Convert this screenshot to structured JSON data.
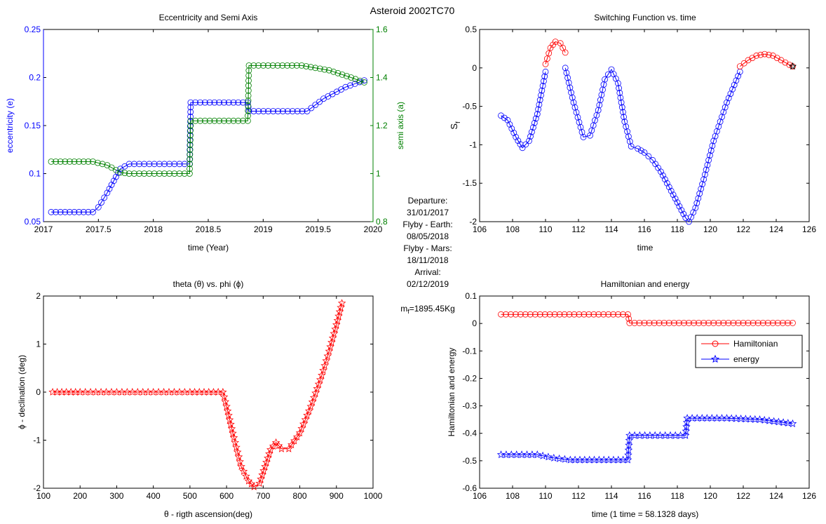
{
  "figure_title": "Asteroid 2002TC70",
  "info": {
    "lines": [
      "Departure:",
      "31/01/2017",
      "Flyby - Earth:",
      "08/05/2018",
      "Flyby - Mars:",
      "18/11/2018",
      "Arrival:",
      "02/12/2019"
    ],
    "mass_prefix": "m",
    "mass_sub": "f",
    "mass_value": "=1895.45Kg"
  },
  "chart_data": [
    {
      "type": "line",
      "title": "Eccentricity and Semi Axis",
      "xlabel": "time (Year)",
      "xlim": [
        2017,
        2020
      ],
      "xticks": [
        "2017",
        "2017.5",
        "2018",
        "2018.5",
        "2019",
        "2019.5",
        "2020"
      ],
      "ylabel": "eccentricity (e)",
      "ylim": [
        0.05,
        0.25
      ],
      "yticks": [
        "0.05",
        "0.1",
        "0.15",
        "0.2",
        "0.25"
      ],
      "y2label": "semi axis (a)",
      "y2lim": [
        0.8,
        1.6
      ],
      "y2ticks": [
        "0.8",
        "1",
        "1.2",
        "1.4",
        "1.6"
      ],
      "grid": false,
      "colors": {
        "left_axis": "#0000ff",
        "right_axis": "#008000"
      },
      "series": [
        {
          "axis": "left",
          "color": "#0000ff",
          "marker": "circle",
          "x": [
            2017.07,
            2017.45,
            2017.5,
            2017.58,
            2017.7,
            2017.78,
            2018.33,
            2018.34,
            2018.86,
            2018.87,
            2019.4,
            2019.55,
            2019.75,
            2019.92
          ],
          "y": [
            0.06,
            0.06,
            0.065,
            0.08,
            0.105,
            0.11,
            0.11,
            0.174,
            0.174,
            0.165,
            0.165,
            0.178,
            0.19,
            0.197
          ]
        },
        {
          "axis": "right",
          "color": "#008000",
          "marker": "circle",
          "x": [
            2017.07,
            2017.45,
            2017.58,
            2017.7,
            2017.78,
            2018.33,
            2018.34,
            2018.86,
            2018.87,
            2019.35,
            2019.6,
            2019.8,
            2019.92
          ],
          "y": [
            1.05,
            1.05,
            1.035,
            1.005,
            1.0,
            1.0,
            1.22,
            1.22,
            1.45,
            1.45,
            1.43,
            1.4,
            1.38
          ]
        }
      ]
    },
    {
      "type": "line",
      "title": "Switching Function vs. time",
      "xlabel": "time",
      "xlim": [
        106,
        126
      ],
      "xticks": [
        "106",
        "108",
        "110",
        "112",
        "114",
        "116",
        "118",
        "120",
        "122",
        "124",
        "126"
      ],
      "ylabel_main": "S",
      "ylabel_sub": "f",
      "ylim": [
        -2,
        0.5
      ],
      "yticks": [
        "-2",
        "-1.5",
        "-1",
        "-0.5",
        "0",
        "0.5"
      ],
      "grid": false,
      "series": [
        {
          "color": "#0000ff",
          "marker": "circle",
          "x": [
            107.3,
            107.7,
            108.2,
            108.6,
            109.0,
            109.5,
            110.0
          ],
          "y": [
            -0.62,
            -0.68,
            -0.9,
            -1.04,
            -0.95,
            -0.6,
            -0.05
          ]
        },
        {
          "color": "#ff0000",
          "marker": "circle",
          "x": [
            110.0,
            110.3,
            110.6,
            110.9,
            111.2
          ],
          "y": [
            0.05,
            0.26,
            0.34,
            0.32,
            0.2
          ]
        },
        {
          "color": "#0000ff",
          "marker": "circle",
          "x": [
            111.2,
            111.7,
            112.3,
            112.7,
            113.2,
            113.6,
            114.0,
            114.4,
            114.8,
            115.2,
            115.6,
            116.0,
            116.5,
            117.0,
            117.5,
            118.0,
            118.5,
            118.7,
            119.1,
            119.6,
            120.2,
            121.0,
            121.8
          ],
          "y": [
            0.0,
            -0.45,
            -0.9,
            -0.88,
            -0.55,
            -0.15,
            -0.02,
            -0.2,
            -0.7,
            -1.02,
            -1.05,
            -1.1,
            -1.2,
            -1.35,
            -1.55,
            -1.75,
            -1.95,
            -2.0,
            -1.82,
            -1.45,
            -0.95,
            -0.45,
            -0.05
          ]
        },
        {
          "color": "#ff0000",
          "marker": "circle",
          "x": [
            121.8,
            122.3,
            122.8,
            123.3,
            123.8,
            124.3,
            124.8,
            125.0
          ],
          "y": [
            0.02,
            0.1,
            0.16,
            0.18,
            0.16,
            0.1,
            0.04,
            0.02
          ]
        }
      ]
    },
    {
      "type": "line",
      "title": "theta (θ) vs. phi (ϕ)",
      "xlabel": "θ - rigth ascension(deg)",
      "xlim": [
        100,
        1000
      ],
      "xticks": [
        "100",
        "200",
        "300",
        "400",
        "500",
        "600",
        "700",
        "800",
        "900",
        "1000"
      ],
      "ylabel": "ϕ - declination (deg)",
      "ylim": [
        -2,
        2
      ],
      "yticks": [
        "-2",
        "-1",
        "0",
        "1",
        "2"
      ],
      "grid": false,
      "series": [
        {
          "color": "#ff0000",
          "marker": "star",
          "x": [
            125,
            200,
            300,
            400,
            500,
            590,
            600,
            620,
            640,
            660,
            675,
            690,
            705,
            720,
            735,
            750,
            770,
            800,
            830,
            860,
            880,
            900,
            915
          ],
          "y": [
            0,
            0,
            0,
            0,
            0,
            0,
            -0.3,
            -0.95,
            -1.55,
            -1.85,
            -1.97,
            -1.9,
            -1.55,
            -1.2,
            -1.05,
            -1.18,
            -1.18,
            -0.85,
            -0.3,
            0.35,
            0.85,
            1.4,
            1.85
          ]
        }
      ]
    },
    {
      "type": "line",
      "title": "Hamiltonian and energy",
      "xlabel": "time (1 time = 58.1328 days)",
      "xlim": [
        106,
        126
      ],
      "xticks": [
        "106",
        "108",
        "110",
        "112",
        "114",
        "116",
        "118",
        "120",
        "122",
        "124",
        "126"
      ],
      "ylabel": "Hamiltonian and energy",
      "ylim": [
        -0.6,
        0.1
      ],
      "yticks": [
        "-0.6",
        "-0.5",
        "-0.4",
        "-0.3",
        "-0.2",
        "-0.1",
        "0",
        "0.1"
      ],
      "grid": false,
      "legend": {
        "placement": "top-right",
        "entries": [
          "Hamiltonian",
          "energy"
        ]
      },
      "series": [
        {
          "name": "Hamiltonian",
          "color": "#ff0000",
          "marker": "circle",
          "x": [
            107.3,
            115.0,
            115.1,
            125.0
          ],
          "y": [
            0.033,
            0.033,
            0.002,
            0.002
          ]
        },
        {
          "name": "energy",
          "color": "#0000ff",
          "marker": "star",
          "x": [
            107.3,
            109.5,
            110.5,
            111.5,
            115.0,
            115.1,
            118.5,
            118.6,
            121.0,
            123.0,
            125.0
          ],
          "y": [
            -0.478,
            -0.478,
            -0.49,
            -0.497,
            -0.497,
            -0.408,
            -0.408,
            -0.345,
            -0.345,
            -0.35,
            -0.365
          ]
        }
      ]
    }
  ]
}
